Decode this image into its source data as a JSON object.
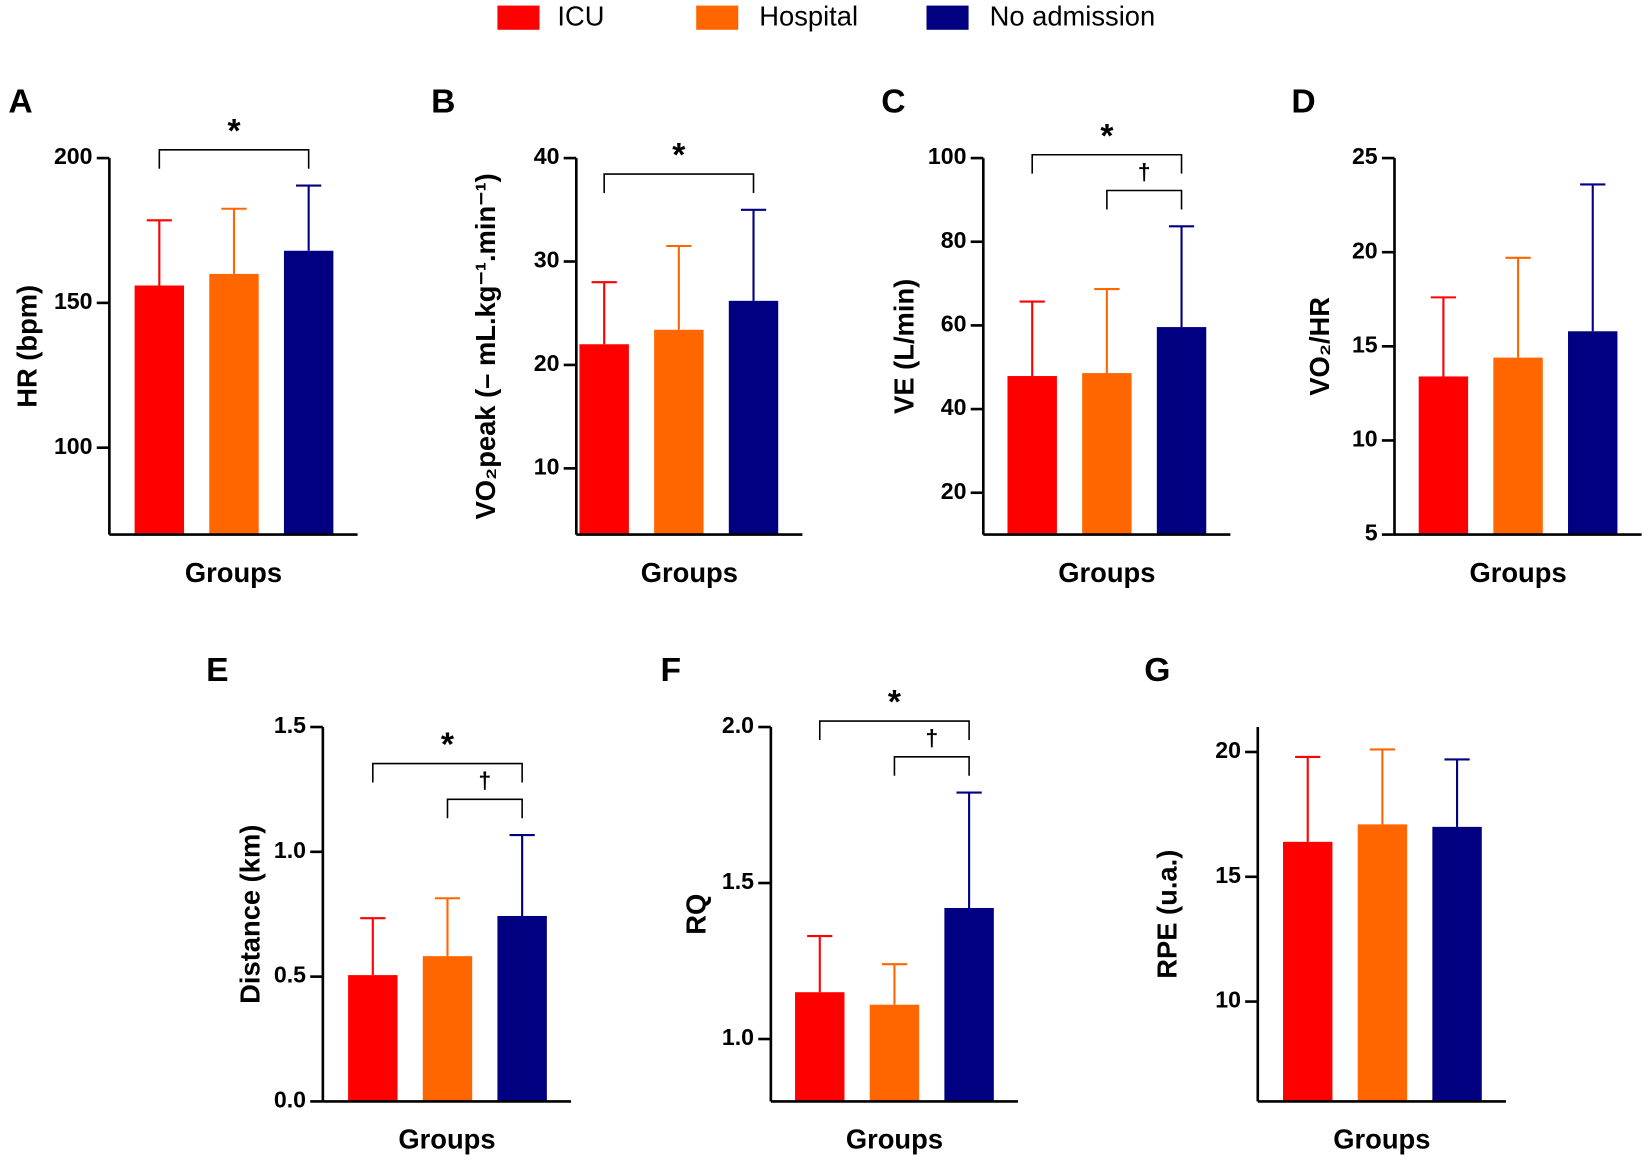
{
  "legend": {
    "items": [
      {
        "name": "ICU",
        "color": "#ff0000"
      },
      {
        "name": "Hospital",
        "color": "#ff6600"
      },
      {
        "name": "No admission",
        "color": "#000080"
      }
    ]
  },
  "chart_data": [
    {
      "type": "bar",
      "label": "A",
      "ylabel": "HR (bpm)",
      "xlabel": "Groups",
      "values": [
        156,
        160,
        168
      ],
      "errors": [
        22.5,
        22.5,
        22.5
      ],
      "ylim": [
        70,
        200
      ],
      "yticks": [
        100,
        150,
        200
      ],
      "annotations": [
        {
          "text": "*",
          "from": 0,
          "to": 2
        }
      ]
    },
    {
      "type": "bar",
      "label": "B",
      "ylabel": "VO₂peak (– mL.kg⁻¹.min⁻¹)",
      "xlabel": "Groups",
      "values": [
        22.0,
        23.4,
        26.2
      ],
      "errors": [
        6.0,
        8.1,
        8.8
      ],
      "ylim": [
        3.6,
        40
      ],
      "yticks": [
        10,
        20,
        30,
        40
      ],
      "annotations": [
        {
          "text": "*",
          "from": 0,
          "to": 2
        }
      ]
    },
    {
      "type": "bar",
      "label": "C",
      "ylabel": "VE (L/min)",
      "xlabel": "Groups",
      "values": [
        47.9,
        48.6,
        59.6
      ],
      "errors": [
        17.8,
        20.1,
        24.1
      ],
      "ylim": [
        10,
        100
      ],
      "yticks": [
        20,
        40,
        60,
        80,
        100
      ],
      "annotations": [
        {
          "text": "*",
          "from": 0,
          "to": 2
        },
        {
          "text": "†",
          "from": 1,
          "to": 2
        }
      ]
    },
    {
      "type": "bar",
      "label": "D",
      "ylabel": "VO₂/HR",
      "xlabel": "Groups",
      "values": [
        13.4,
        14.4,
        15.8
      ],
      "errors": [
        4.2,
        5.3,
        7.8
      ],
      "ylim": [
        5,
        25
      ],
      "yticks": [
        5,
        10,
        15,
        20,
        25
      ],
      "annotations": []
    },
    {
      "type": "bar",
      "label": "E",
      "ylabel": "Distance (km)",
      "xlabel": "Groups",
      "values": [
        0.506,
        0.582,
        0.743
      ],
      "errors": [
        0.228,
        0.232,
        0.324
      ],
      "ylim": [
        0,
        1.5
      ],
      "yticks": [
        {
          "value": 0,
          "label": "0.0"
        },
        0.5,
        {
          "value": 1,
          "label": "1.0"
        },
        1.5
      ],
      "annotations": [
        {
          "text": "*",
          "from": 0,
          "to": 2
        },
        {
          "text": "†",
          "from": 1,
          "to": 2
        }
      ]
    },
    {
      "type": "bar",
      "label": "F",
      "ylabel": "RQ",
      "xlabel": "Groups",
      "values": [
        1.15,
        1.11,
        1.42
      ],
      "errors": [
        0.18,
        0.13,
        0.37
      ],
      "ylim": [
        0.8,
        2
      ],
      "yticks": [
        {
          "value": 1,
          "label": "1.0"
        },
        1.5,
        {
          "value": 2,
          "label": "2.0"
        }
      ],
      "annotations": [
        {
          "text": "*",
          "from": 0,
          "to": 2
        },
        {
          "text": "†",
          "from": 1,
          "to": 2
        }
      ]
    },
    {
      "type": "bar",
      "label": "G",
      "ylabel": "RPE (u.a.)",
      "xlabel": "Groups",
      "values": [
        16.4,
        17.1,
        17.0
      ],
      "errors": [
        3.4,
        3.0,
        2.7
      ],
      "ylim": [
        6,
        21
      ],
      "yticks": [
        10,
        15,
        20
      ],
      "annotations": []
    }
  ]
}
